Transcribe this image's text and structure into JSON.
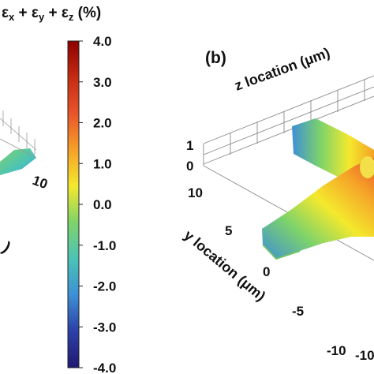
{
  "chart_data": {
    "type": "heatmap",
    "colorbar": {
      "title_parts": [
        "ε",
        "x",
        " + ",
        "ε",
        "y",
        " + ",
        "ε",
        "z",
        " (%)"
      ],
      "ticks": [
        4.0,
        3.0,
        2.0,
        1.0,
        0.0,
        -1.0,
        -2.0,
        -3.0,
        -4.0
      ],
      "tick_labels": [
        "4.0",
        "3.0",
        "2.0",
        "1.0",
        "0.0",
        "-1.0",
        "-2.0",
        "-3.0",
        "-4.0"
      ],
      "range": [
        -4.0,
        4.0
      ],
      "colors": [
        "#8b0000",
        "#c62b12",
        "#e8542a",
        "#f5a128",
        "#f4e92c",
        "#7ed36a",
        "#4bc3b6",
        "#3d8fd6",
        "#2c3fa6",
        "#201a72"
      ]
    },
    "panel_b": {
      "label": "(b)",
      "z_axis_label": "z location (μm)",
      "z_ticks": [
        "1",
        "0"
      ],
      "y_axis_label": "y location (μm)",
      "y_ticks": [
        "10",
        "5",
        "0",
        "-5",
        "-10"
      ],
      "x_tick_partial": "-10"
    },
    "panel_a_fragment": {
      "x_tick": "10",
      "axis_label_fragment": ")"
    }
  }
}
